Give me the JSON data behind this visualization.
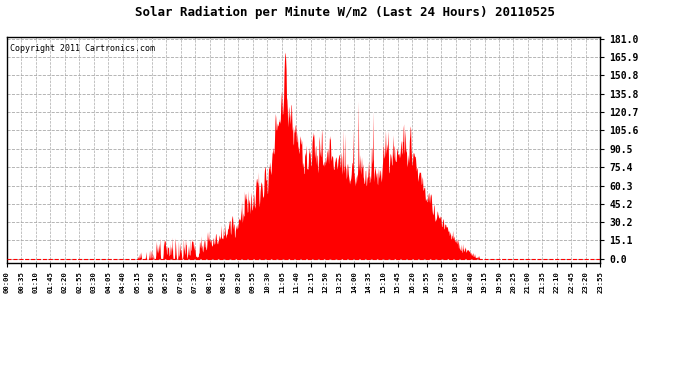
{
  "title": "Solar Radiation per Minute W/m2 (Last 24 Hours) 20110525",
  "copyright_text": "Copyright 2011 Cartronics.com",
  "fill_color": "#ff0000",
  "line_color": "#ff0000",
  "background_color": "#ffffff",
  "plot_bg_color": "#ffffff",
  "yticks": [
    0.0,
    15.1,
    30.2,
    45.2,
    60.3,
    75.4,
    90.5,
    105.6,
    120.7,
    135.8,
    150.8,
    165.9,
    181.0
  ],
  "ymax": 181.0,
  "xtick_labels": [
    "00:00",
    "00:35",
    "01:10",
    "01:45",
    "02:20",
    "02:55",
    "03:30",
    "04:05",
    "04:40",
    "05:15",
    "05:50",
    "06:25",
    "07:00",
    "07:35",
    "08:10",
    "08:45",
    "09:20",
    "09:55",
    "10:30",
    "11:05",
    "11:40",
    "12:15",
    "12:50",
    "13:25",
    "14:00",
    "14:35",
    "15:10",
    "15:45",
    "16:20",
    "16:55",
    "17:30",
    "18:05",
    "18:40",
    "19:15",
    "19:50",
    "20:25",
    "21:00",
    "21:35",
    "22:10",
    "22:45",
    "23:20",
    "23:55"
  ]
}
